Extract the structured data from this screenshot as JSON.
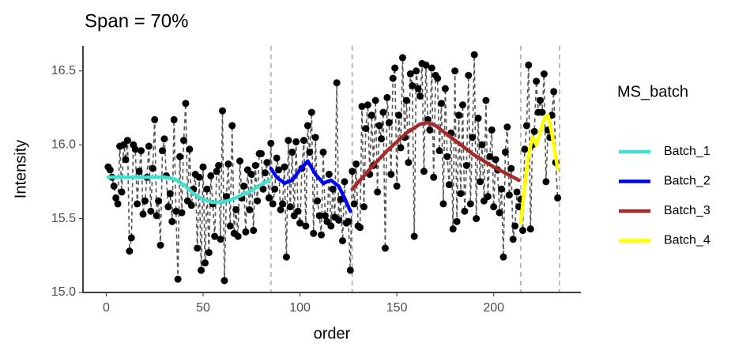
{
  "chart_data": {
    "type": "scatter",
    "title": "Span = 70%",
    "x_label": "order",
    "y_label": "Intensity",
    "xlim": [
      -12,
      245
    ],
    "ylim": [
      15.0,
      16.67
    ],
    "xticks": [
      0,
      50,
      100,
      150,
      200
    ],
    "yticks": [
      {
        "value": 15.0,
        "label": "15.0"
      },
      {
        "value": 15.5,
        "label": "15.5"
      },
      {
        "value": 16.0,
        "label": "16.0"
      },
      16.5
    ],
    "batch_boundaries": [
      85,
      127,
      214,
      234
    ],
    "legend_title": "MS_batch",
    "points": {
      "color": "#000000",
      "x": [
        1,
        2,
        3,
        4,
        5,
        6,
        7,
        8,
        9,
        10,
        11,
        12,
        13,
        14,
        15,
        16,
        17,
        18,
        19,
        20,
        21,
        22,
        23,
        24,
        25,
        26,
        27,
        28,
        29,
        30,
        31,
        32,
        33,
        34,
        35,
        36,
        37,
        38,
        39,
        40,
        41,
        42,
        43,
        44,
        45,
        46,
        47,
        48,
        49,
        50,
        51,
        52,
        53,
        54,
        55,
        56,
        57,
        58,
        59,
        60,
        61,
        62,
        63,
        64,
        65,
        66,
        67,
        68,
        69,
        70,
        71,
        72,
        73,
        74,
        75,
        76,
        77,
        78,
        79,
        80,
        81,
        82,
        83,
        84,
        85,
        86,
        87,
        88,
        89,
        90,
        91,
        92,
        93,
        94,
        95,
        96,
        97,
        98,
        99,
        100,
        101,
        102,
        103,
        104,
        105,
        106,
        107,
        108,
        109,
        110,
        111,
        112,
        113,
        114,
        115,
        116,
        117,
        118,
        119,
        120,
        121,
        122,
        123,
        124,
        125,
        126,
        127,
        128,
        129,
        130,
        131,
        132,
        133,
        134,
        135,
        136,
        137,
        138,
        139,
        140,
        141,
        142,
        143,
        144,
        145,
        146,
        147,
        148,
        149,
        150,
        151,
        152,
        153,
        154,
        155,
        156,
        157,
        158,
        159,
        160,
        161,
        162,
        163,
        164,
        165,
        166,
        167,
        168,
        169,
        170,
        171,
        172,
        173,
        174,
        175,
        176,
        177,
        178,
        179,
        180,
        181,
        182,
        183,
        184,
        185,
        186,
        187,
        188,
        189,
        190,
        191,
        192,
        193,
        194,
        195,
        196,
        197,
        198,
        199,
        200,
        201,
        202,
        203,
        204,
        205,
        206,
        207,
        208,
        209,
        210,
        211,
        212,
        213,
        214,
        215,
        216,
        217,
        218,
        219,
        220,
        221,
        222,
        223,
        224,
        225,
        226,
        227,
        228,
        229,
        230,
        231,
        232,
        233
      ],
      "values": [
        15.85,
        15.83,
        15.78,
        15.72,
        15.64,
        15.6,
        15.99,
        15.68,
        16.0,
        15.9,
        16.03,
        15.28,
        15.37,
        16.0,
        15.97,
        15.6,
        15.82,
        15.96,
        15.53,
        15.62,
        15.78,
        15.99,
        15.55,
        15.84,
        16.17,
        15.52,
        15.62,
        15.32,
        15.96,
        16.04,
        15.79,
        15.58,
        15.67,
        15.48,
        16.17,
        15.55,
        15.09,
        15.92,
        15.54,
        16.03,
        16.28,
        15.62,
        15.97,
        15.59,
        15.7,
        15.8,
        15.3,
        15.78,
        15.15,
        15.85,
        15.2,
        15.7,
        15.27,
        15.79,
        15.6,
        15.38,
        15.82,
        15.86,
        15.36,
        16.23,
        15.08,
        15.65,
        15.87,
        15.45,
        16.13,
        15.4,
        15.56,
        15.38,
        15.89,
        15.64,
        15.72,
        15.41,
        15.83,
        15.56,
        15.8,
        15.42,
        15.86,
        15.62,
        15.94,
        15.94,
        15.7,
        15.81,
        15.88,
        15.64,
        16.01,
        15.6,
        15.7,
        15.91,
        15.83,
        15.56,
        15.6,
        15.85,
        15.24,
        16.03,
        15.58,
        15.95,
        15.52,
        16.02,
        15.55,
        15.47,
        15.84,
        16.03,
        15.45,
        16.13,
        15.95,
        16.22,
        15.4,
        16.05,
        15.62,
        15.52,
        15.39,
        15.95,
        15.52,
        15.48,
        15.8,
        15.45,
        15.7,
        15.51,
        16.42,
        15.49,
        15.63,
        15.35,
        15.75,
        15.47,
        15.48,
        15.15,
        15.82,
        15.6,
        15.87,
        15.45,
        15.44,
        16.26,
        15.58,
        16.11,
        16.27,
        15.8,
        16.2,
        15.86,
        16.3,
        15.68,
        16.13,
        16.04,
        16.22,
        15.3,
        16.32,
        16.15,
        15.8,
        16.45,
        16.52,
        15.72,
        16.2,
        15.98,
        16.59,
        16.05,
        16.3,
        15.88,
        16.48,
        16.4,
        15.38,
        16.5,
        16.38,
        16.33,
        16.55,
        15.82,
        16.54,
        16.17,
        16.1,
        16.52,
        15.78,
        16.47,
        16.45,
        15.96,
        16.28,
        15.6,
        16.38,
        15.92,
        15.73,
        16.08,
        15.43,
        16.5,
        15.48,
        16.2,
        15.67,
        16.27,
        15.55,
        15.86,
        16.47,
        15.6,
        16.05,
        16.61,
        15.5,
        16.18,
        15.75,
        16.0,
        15.62,
        16.3,
        15.65,
        15.92,
        16.1,
        15.58,
        15.9,
        15.83,
        15.54,
        15.7,
        15.24,
        15.95,
        16.12,
        15.66,
        15.84,
        15.36,
        15.45,
        15.68,
        15.58,
        15.63,
        15.42,
        15.97,
        16.13,
        16.54,
        15.43,
        16.0,
        16.09,
        16.43,
        16.22,
        16.3,
        16.22,
        16.48,
        15.75,
        16.1,
        16.05,
        16.2,
        16.36,
        15.88,
        15.64
      ]
    },
    "series": [
      {
        "name": "Batch_1",
        "color": "#40E0D0",
        "x": [
          1,
          10,
          20,
          30,
          35,
          40,
          45,
          50,
          55,
          60,
          65,
          70,
          75,
          80,
          84
        ],
        "values": [
          15.78,
          15.78,
          15.78,
          15.78,
          15.77,
          15.73,
          15.67,
          15.63,
          15.61,
          15.61,
          15.63,
          15.66,
          15.69,
          15.73,
          15.76
        ]
      },
      {
        "name": "Batch_2",
        "color": "#0000FF",
        "x": [
          85,
          88,
          92,
          96,
          100,
          104,
          108,
          112,
          116,
          120,
          123,
          126
        ],
        "values": [
          15.84,
          15.78,
          15.74,
          15.76,
          15.83,
          15.89,
          15.8,
          15.74,
          15.76,
          15.72,
          15.64,
          15.55
        ]
      },
      {
        "name": "Batch_3",
        "color": "#A52A2A",
        "x": [
          127,
          135,
          145,
          155,
          162,
          166,
          170,
          180,
          190,
          200,
          213
        ],
        "values": [
          15.7,
          15.82,
          15.96,
          16.08,
          16.14,
          16.15,
          16.13,
          16.03,
          15.93,
          15.85,
          15.76
        ]
      },
      {
        "name": "Batch_4",
        "color": "#FFFF00",
        "x": [
          214,
          216,
          218,
          220,
          222,
          224,
          226,
          228,
          230,
          233
        ],
        "values": [
          15.47,
          15.72,
          15.93,
          16.05,
          16.0,
          16.08,
          16.17,
          16.2,
          16.08,
          15.84
        ]
      }
    ]
  }
}
